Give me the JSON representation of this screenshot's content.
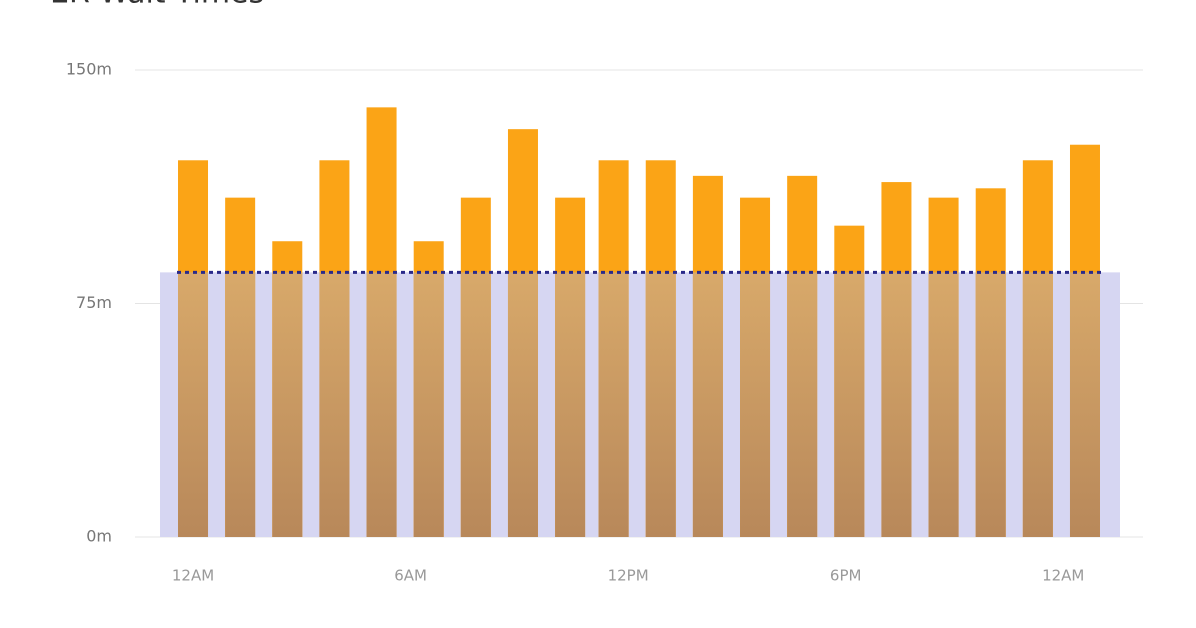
{
  "chart_data": {
    "type": "bar",
    "title": "ER Wait Times",
    "x": [
      0,
      1.3,
      2.6,
      3.9,
      5.2,
      6.5,
      7.8,
      9.1,
      10.4,
      11.6,
      12.9,
      14.2,
      15.5,
      16.8,
      18.1,
      19.4,
      20.7,
      22,
      23.3,
      24.6
    ],
    "values": [
      121,
      109,
      95,
      121,
      138,
      95,
      109,
      131,
      109,
      121,
      121,
      116,
      109,
      116,
      100,
      114,
      109,
      112,
      121,
      126
    ],
    "color": "#fba416",
    "reference_line": 85,
    "xlim": [
      -1.6,
      26.2
    ],
    "xticks": [
      {
        "value": 0,
        "label": "12AM"
      },
      {
        "value": 6,
        "label": "6AM"
      },
      {
        "value": 12,
        "label": "12PM"
      },
      {
        "value": 18,
        "label": "6PM"
      },
      {
        "value": 24,
        "label": "12AM"
      }
    ],
    "ylim": [
      0,
      150
    ],
    "yticks": [
      {
        "value": 0,
        "label": "0m"
      },
      {
        "value": 75,
        "label": "75m"
      },
      {
        "value": 150,
        "label": "150m"
      }
    ],
    "grid": true
  }
}
